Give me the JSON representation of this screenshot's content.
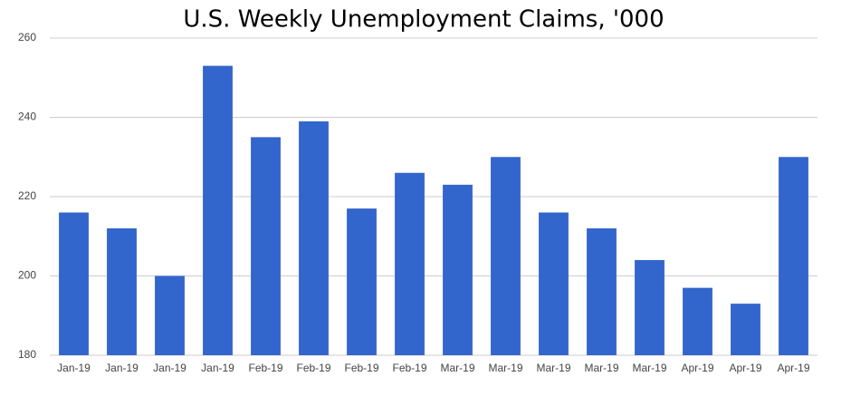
{
  "chart_data": {
    "type": "bar",
    "title": "U.S. Weekly Unemployment Claims, '000",
    "categories": [
      "Jan-19",
      "Jan-19",
      "Jan-19",
      "Jan-19",
      "Feb-19",
      "Feb-19",
      "Feb-19",
      "Feb-19",
      "Mar-19",
      "Mar-19",
      "Mar-19",
      "Mar-19",
      "Mar-19",
      "Apr-19",
      "Apr-19",
      "Apr-19"
    ],
    "values": [
      216,
      212,
      200,
      253,
      235,
      239,
      217,
      226,
      223,
      230,
      216,
      212,
      204,
      197,
      193,
      230
    ],
    "color": "#3366cc",
    "ylim": [
      180,
      260
    ],
    "yticks": [
      180,
      200,
      220,
      240,
      260
    ],
    "grid": true
  }
}
